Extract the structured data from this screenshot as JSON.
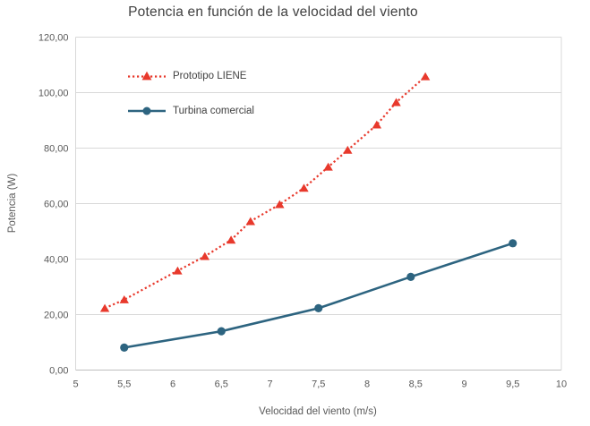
{
  "title": "Potencia en función de la velocidad del viento",
  "axes": {
    "x": {
      "label": "Velocidad del viento (m/s)",
      "tick_labels": [
        "5",
        "5,5",
        "6",
        "6,5",
        "7",
        "7,5",
        "8",
        "8,5",
        "9",
        "9,5",
        "10"
      ]
    },
    "y": {
      "label": "Potencia (W)",
      "tick_labels": [
        "0,00",
        "20,00",
        "40,00",
        "60,00",
        "80,00",
        "100,00",
        "120,00"
      ]
    }
  },
  "legend": {
    "items": [
      {
        "label": "Prototipo LIENE"
      },
      {
        "label": "Turbina comercial"
      }
    ]
  },
  "colors": {
    "prototipo_red": "#e8392c",
    "turbina_blue": "#2d6480",
    "gridline": "#d9d9d9",
    "axis_line": "#bfbfbf",
    "tick_text": "#595959",
    "title_text": "#404040"
  },
  "chart_data": {
    "type": "line",
    "title": "Potencia en función de la velocidad del viento",
    "xlabel": "Velocidad del viento (m/s)",
    "ylabel": "Potencia (W)",
    "xlim": [
      5,
      10
    ],
    "ylim": [
      0,
      120
    ],
    "x_tick_step": 0.5,
    "y_tick_step": 20,
    "grid": "horizontal",
    "legend_position": "top-left inside plot",
    "series": [
      {
        "name": "Prototipo LIENE",
        "color": "#e8392c",
        "line_style": "dotted",
        "marker": "triangle",
        "points": [
          [
            5.3,
            22.3
          ],
          [
            5.5,
            25.4
          ],
          [
            6.05,
            35.8
          ],
          [
            6.33,
            41.0
          ],
          [
            6.6,
            46.9
          ],
          [
            6.8,
            53.6
          ],
          [
            7.1,
            59.7
          ],
          [
            7.35,
            65.6
          ],
          [
            7.6,
            73.2
          ],
          [
            7.8,
            79.3
          ],
          [
            8.1,
            88.4
          ],
          [
            8.3,
            96.5
          ],
          [
            8.6,
            105.8
          ]
        ]
      },
      {
        "name": "Turbina comercial",
        "color": "#2d6480",
        "line_style": "solid",
        "marker": "circle",
        "points": [
          [
            5.5,
            8.1
          ],
          [
            6.5,
            14.0
          ],
          [
            7.5,
            22.3
          ],
          [
            8.45,
            33.6
          ],
          [
            9.5,
            45.7
          ]
        ]
      }
    ]
  }
}
